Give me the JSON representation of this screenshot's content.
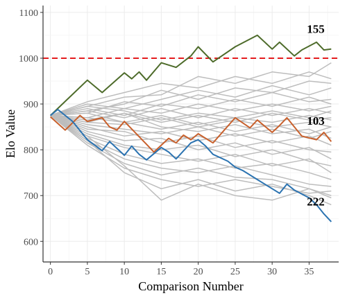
{
  "chart_data": {
    "type": "line",
    "xlabel": "Comparison Number",
    "ylabel": "Elo Value",
    "xlim": [
      -1,
      39
    ],
    "ylim": [
      555,
      1115
    ],
    "x_ticks": [
      0,
      5,
      10,
      15,
      20,
      25,
      30,
      35
    ],
    "y_ticks": [
      600,
      700,
      800,
      900,
      1000,
      1100
    ],
    "grid": true,
    "reference_line": {
      "y": 1000,
      "color": "#e41a1c",
      "style": "dashed"
    },
    "colors": {
      "background_series": "#bdbdbd",
      "green": "#4d6b2a",
      "orange": "#c8602c",
      "blue": "#2b73b1",
      "grid": "#ebebeb",
      "axis": "#333333"
    },
    "highlighted_series": [
      {
        "name": "155",
        "color": "#4d6b2a",
        "x": [
          0,
          5,
          7,
          10,
          11,
          12,
          13,
          15,
          17,
          19,
          20,
          22,
          25,
          28,
          30,
          31,
          33,
          34,
          36,
          37,
          38
        ],
        "y": [
          875,
          952,
          925,
          968,
          955,
          970,
          952,
          990,
          980,
          1005,
          1025,
          992,
          1025,
          1050,
          1020,
          1035,
          1005,
          1018,
          1035,
          1018,
          1020
        ]
      },
      {
        "name": "103",
        "color": "#c8602c",
        "x": [
          0,
          2,
          4,
          5,
          7,
          8,
          9,
          10,
          13,
          14,
          16,
          17,
          18,
          19,
          20,
          22,
          25,
          27,
          28,
          30,
          31,
          32,
          34,
          36,
          37,
          38
        ],
        "y": [
          872,
          843,
          875,
          862,
          870,
          850,
          843,
          862,
          812,
          795,
          825,
          815,
          832,
          822,
          835,
          815,
          870,
          848,
          865,
          838,
          853,
          870,
          830,
          822,
          838,
          818
        ]
      },
      {
        "name": "222",
        "color": "#2b73b1",
        "x": [
          0,
          1,
          3,
          5,
          7,
          8,
          9,
          10,
          11,
          12,
          13,
          15,
          16,
          17,
          19,
          20,
          21,
          22,
          24,
          25,
          26,
          28,
          30,
          31,
          32,
          33,
          35,
          36,
          37,
          38
        ],
        "y": [
          875,
          888,
          862,
          822,
          798,
          818,
          803,
          788,
          808,
          790,
          778,
          805,
          795,
          780,
          815,
          822,
          808,
          790,
          775,
          762,
          755,
          735,
          715,
          705,
          725,
          712,
          695,
          680,
          660,
          643
        ]
      }
    ],
    "background_series": [
      {
        "x": [
          0,
          5,
          10,
          15,
          20,
          25,
          30,
          35,
          38
        ],
        "y": [
          875,
          905,
          925,
          945,
          935,
          960,
          945,
          970,
          955
        ]
      },
      {
        "x": [
          0,
          5,
          10,
          15,
          20,
          25,
          30,
          35,
          38
        ],
        "y": [
          875,
          895,
          915,
          920,
          960,
          945,
          970,
          960,
          990
        ]
      },
      {
        "x": [
          0,
          5,
          10,
          15,
          20,
          25,
          30,
          35,
          38
        ],
        "y": [
          875,
          885,
          900,
          930,
          910,
          935,
          925,
          950,
          945
        ]
      },
      {
        "x": [
          0,
          5,
          10,
          15,
          20,
          25,
          30,
          35,
          38
        ],
        "y": [
          875,
          900,
          890,
          910,
          930,
          915,
          940,
          920,
          935
        ]
      },
      {
        "x": [
          0,
          5,
          10,
          15,
          20,
          25,
          30,
          35,
          38
        ],
        "y": [
          875,
          880,
          905,
          895,
          920,
          905,
          925,
          905,
          910
        ]
      },
      {
        "x": [
          0,
          5,
          10,
          15,
          20,
          25,
          30,
          35,
          38
        ],
        "y": [
          875,
          890,
          875,
          900,
          890,
          910,
          895,
          915,
          900
        ]
      },
      {
        "x": [
          0,
          5,
          10,
          15,
          20,
          25,
          30,
          35,
          38
        ],
        "y": [
          875,
          870,
          890,
          880,
          900,
          885,
          900,
          885,
          895
        ]
      },
      {
        "x": [
          0,
          5,
          10,
          15,
          20,
          25,
          30,
          35,
          38
        ],
        "y": [
          875,
          885,
          870,
          890,
          870,
          890,
          875,
          890,
          880
        ]
      },
      {
        "x": [
          0,
          5,
          10,
          15,
          20,
          25,
          30,
          35,
          38
        ],
        "y": [
          875,
          865,
          880,
          860,
          875,
          860,
          880,
          865,
          870
        ]
      },
      {
        "x": [
          0,
          5,
          10,
          15,
          20,
          25,
          30,
          35,
          38
        ],
        "y": [
          875,
          860,
          855,
          870,
          850,
          865,
          850,
          860,
          850
        ]
      },
      {
        "x": [
          0,
          5,
          10,
          15,
          20,
          25,
          30,
          35,
          38
        ],
        "y": [
          875,
          855,
          845,
          835,
          850,
          830,
          845,
          825,
          840
        ]
      },
      {
        "x": [
          0,
          5,
          10,
          15,
          20,
          25,
          30,
          35,
          38
        ],
        "y": [
          875,
          850,
          830,
          840,
          820,
          835,
          815,
          830,
          810
        ]
      },
      {
        "x": [
          0,
          5,
          10,
          15,
          20,
          25,
          30,
          35,
          38
        ],
        "y": [
          875,
          845,
          840,
          815,
          830,
          805,
          820,
          800,
          795
        ]
      },
      {
        "x": [
          0,
          5,
          10,
          15,
          20,
          25,
          30,
          35,
          38
        ],
        "y": [
          875,
          840,
          820,
          825,
          800,
          815,
          790,
          805,
          780
        ]
      },
      {
        "x": [
          0,
          5,
          10,
          15,
          20,
          25,
          30,
          35,
          38
        ],
        "y": [
          875,
          835,
          810,
          800,
          810,
          785,
          800,
          775,
          765
        ]
      },
      {
        "x": [
          0,
          5,
          10,
          15,
          20,
          25,
          30,
          35,
          38
        ],
        "y": [
          875,
          830,
          805,
          790,
          775,
          790,
          765,
          780,
          750
        ]
      },
      {
        "x": [
          0,
          5,
          10,
          15,
          20,
          25,
          30,
          35,
          38
        ],
        "y": [
          875,
          825,
          790,
          770,
          780,
          760,
          770,
          750,
          735
        ]
      },
      {
        "x": [
          0,
          5,
          10,
          15,
          20,
          25,
          30,
          35,
          38
        ],
        "y": [
          875,
          820,
          780,
          760,
          750,
          765,
          745,
          725,
          720
        ]
      },
      {
        "x": [
          0,
          5,
          10,
          15,
          20,
          25,
          30,
          35,
          38
        ],
        "y": [
          875,
          815,
          770,
          745,
          760,
          740,
          735,
          715,
          700
        ]
      },
      {
        "x": [
          0,
          5,
          10,
          15,
          20,
          25,
          30,
          35,
          38
        ],
        "y": [
          875,
          810,
          760,
          735,
          720,
          735,
          720,
          705,
          710
        ]
      },
      {
        "x": [
          0,
          5,
          10,
          15,
          20,
          25,
          30,
          35,
          38
        ],
        "y": [
          875,
          820,
          750,
          715,
          735,
          710,
          725,
          700,
          680
        ]
      },
      {
        "x": [
          0,
          5,
          10,
          15,
          20,
          25,
          30,
          35,
          38
        ],
        "y": [
          875,
          830,
          765,
          690,
          725,
          700,
          690,
          715,
          695
        ]
      },
      {
        "x": [
          0,
          5,
          10,
          15,
          20,
          25,
          30,
          35,
          38
        ],
        "y": [
          875,
          870,
          860,
          845,
          860,
          840,
          855,
          835,
          850
        ]
      },
      {
        "x": [
          0,
          5,
          10,
          15,
          20,
          25,
          30,
          35,
          38
        ],
        "y": [
          875,
          880,
          860,
          875,
          855,
          870,
          860,
          875,
          865
        ]
      },
      {
        "x": [
          0,
          5,
          10,
          15,
          20,
          25,
          30,
          35,
          38
        ],
        "y": [
          875,
          895,
          885,
          865,
          880,
          870,
          885,
          870,
          885
        ]
      },
      {
        "x": [
          0,
          5,
          10,
          15,
          20,
          25,
          30,
          35,
          38
        ],
        "y": [
          875,
          860,
          880,
          850,
          840,
          855,
          835,
          845,
          825
        ]
      }
    ]
  }
}
